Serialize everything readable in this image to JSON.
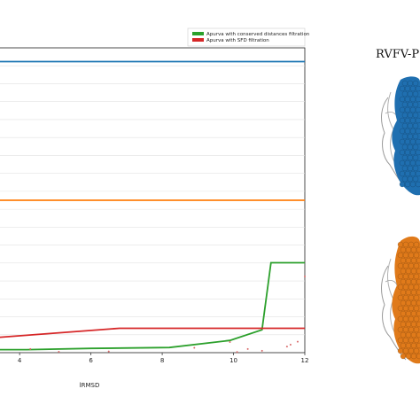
{
  "chart_data": {
    "type": "line",
    "title": "",
    "xlabel": "lRMSD",
    "ylabel": "",
    "xlim": [
      3.4,
      12
    ],
    "ylim": [
      0,
      1
    ],
    "grid": true,
    "xticks": [
      4,
      6,
      8,
      10,
      12
    ],
    "legend_position": "top-right",
    "legend": [
      {
        "name": "Apurva with conserved distances filtration",
        "color": "#2ca02c"
      },
      {
        "name": "Apurva with SFD filtration",
        "color": "#d62728"
      }
    ],
    "series": [
      {
        "color": "#1f77b4",
        "x": [
          3.4,
          12
        ],
        "y": [
          0.955,
          0.955
        ]
      },
      {
        "color": "#ff7f0e",
        "x": [
          3.4,
          12
        ],
        "y": [
          0.5,
          0.5
        ]
      },
      {
        "name": "Apurva with conserved distances filtration",
        "color": "#2ca02c",
        "x": [
          3.4,
          4.2,
          6,
          8.2,
          9.9,
          10.8,
          11.05,
          12
        ],
        "y": [
          0.01,
          0.01,
          0.014,
          0.017,
          0.04,
          0.075,
          0.295,
          0.295
        ]
      },
      {
        "name": "Apurva with SFD filtration",
        "color": "#d62728",
        "x": [
          3.4,
          6.8,
          12
        ],
        "y": [
          0.05,
          0.08,
          0.08
        ]
      }
    ],
    "scatter_points": {
      "color": "#d96a6a",
      "x": [
        4.3,
        5.1,
        6.5,
        8.9,
        9.9,
        10.1,
        10.4,
        10.8,
        11.5,
        11.6,
        11.8,
        12
      ],
      "y": [
        0.012,
        0.003,
        0.004,
        0.016,
        0.035,
        0.002,
        0.012,
        0.006,
        0.02,
        0.026,
        0.036,
        0.25
      ]
    }
  },
  "side_panel": {
    "title": "RVFV-P",
    "top_color": "#1f6fb0",
    "bottom_color": "#e07a1a"
  }
}
